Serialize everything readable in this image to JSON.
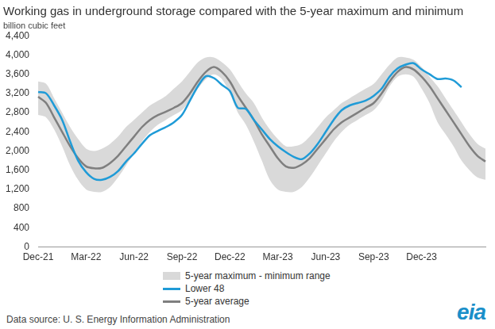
{
  "chart_data": {
    "type": "line",
    "title": "Working gas in underground storage compared with the 5-year maximum and minimum",
    "subtitle": "billion cubic feet",
    "source": "Data source: U. S. Energy Information Administration",
    "logo": "eia",
    "categories": [
      "Dec-21",
      null,
      null,
      null,
      null,
      null,
      "Mar-22",
      null,
      null,
      null,
      null,
      null,
      "Jun-22",
      null,
      null,
      null,
      null,
      null,
      "Sep-22",
      null,
      null,
      null,
      null,
      null,
      "Dec-22",
      null,
      null,
      null,
      null,
      null,
      "Mar-23",
      null,
      null,
      null,
      null,
      null,
      "Jun-23",
      null,
      null,
      null,
      null,
      null,
      "Sep-23",
      null,
      null,
      null,
      null,
      null,
      "Dec-23",
      null,
      null,
      null,
      null,
      null,
      null,
      null,
      null
    ],
    "series": [
      {
        "name": "5-year maximum - minimum range",
        "type": "range",
        "color": "#d9d9d9",
        "max": [
          3450,
          3400,
          3100,
          2800,
          2500,
          2250,
          2050,
          2000,
          2050,
          2150,
          2300,
          2500,
          2650,
          2800,
          2950,
          3050,
          3150,
          3300,
          3450,
          3650,
          3850,
          3950,
          3950,
          3850,
          3700,
          3450,
          3200,
          3000,
          2700,
          2450,
          2250,
          2100,
          2100,
          2150,
          2300,
          2500,
          2700,
          2850,
          3000,
          3100,
          3200,
          3300,
          3400,
          3600,
          3800,
          3950,
          3950,
          3900,
          3750,
          3550,
          3350,
          3100,
          2850,
          2600,
          2350,
          2150,
          2050
        ],
        "min": [
          2750,
          2700,
          2450,
          2100,
          1700,
          1400,
          1200,
          1150,
          1150,
          1250,
          1450,
          1700,
          1950,
          2200,
          2400,
          2550,
          2650,
          2750,
          2850,
          3050,
          3300,
          3500,
          3600,
          3500,
          3200,
          2800,
          2550,
          2200,
          1800,
          1400,
          1200,
          1150,
          1150,
          1250,
          1450,
          1700,
          1950,
          2200,
          2400,
          2550,
          2650,
          2750,
          2850,
          3050,
          3350,
          3550,
          3600,
          3550,
          3300,
          3000,
          2600,
          2350,
          2100,
          1800,
          1600,
          1450,
          1400
        ]
      },
      {
        "name": "Lower 48",
        "type": "line",
        "color": "#1f9bd7",
        "values": [
          3230,
          3200,
          2950,
          2650,
          2200,
          1800,
          1560,
          1420,
          1400,
          1460,
          1580,
          1780,
          1950,
          2150,
          2330,
          2420,
          2500,
          2600,
          2750,
          3050,
          3350,
          3560,
          3520,
          3380,
          3250,
          2900,
          2880,
          2650,
          2450,
          2250,
          2100,
          1980,
          1880,
          1830,
          1950,
          2150,
          2400,
          2650,
          2850,
          2950,
          3000,
          3050,
          3150,
          3300,
          3550,
          3720,
          3800,
          3830,
          3700,
          3600,
          3500,
          3510,
          3470,
          3330,
          null,
          null,
          null
        ]
      },
      {
        "name": "5-year average",
        "type": "line",
        "color": "#7f7f7f",
        "values": [
          3130,
          3000,
          2700,
          2400,
          2100,
          1850,
          1680,
          1640,
          1650,
          1750,
          1900,
          2100,
          2300,
          2500,
          2650,
          2750,
          2820,
          2900,
          3000,
          3200,
          3450,
          3650,
          3750,
          3650,
          3450,
          3150,
          2900,
          2650,
          2350,
          2100,
          1850,
          1680,
          1650,
          1720,
          1850,
          2050,
          2250,
          2450,
          2600,
          2700,
          2800,
          2900,
          3000,
          3200,
          3450,
          3650,
          3750,
          3700,
          3550,
          3350,
          3100,
          2850,
          2600,
          2350,
          2100,
          1900,
          1780
        ]
      }
    ],
    "ylim": [
      0,
      4400
    ],
    "yticks": [
      0,
      400,
      800,
      {
        "value": 1200,
        "label": "1,200"
      },
      {
        "value": 1600,
        "label": "1,600"
      },
      {
        "value": 2000,
        "label": "2,000"
      },
      {
        "value": 2400,
        "label": "2,400"
      },
      {
        "value": 2800,
        "label": "2,800"
      },
      {
        "value": 3200,
        "label": "3,200"
      },
      {
        "value": 3600,
        "label": "3,600"
      },
      {
        "value": 4000,
        "label": "4,000"
      },
      {
        "value": 4400,
        "label": "4,400"
      }
    ],
    "grid": false,
    "legend": "bottom"
  }
}
